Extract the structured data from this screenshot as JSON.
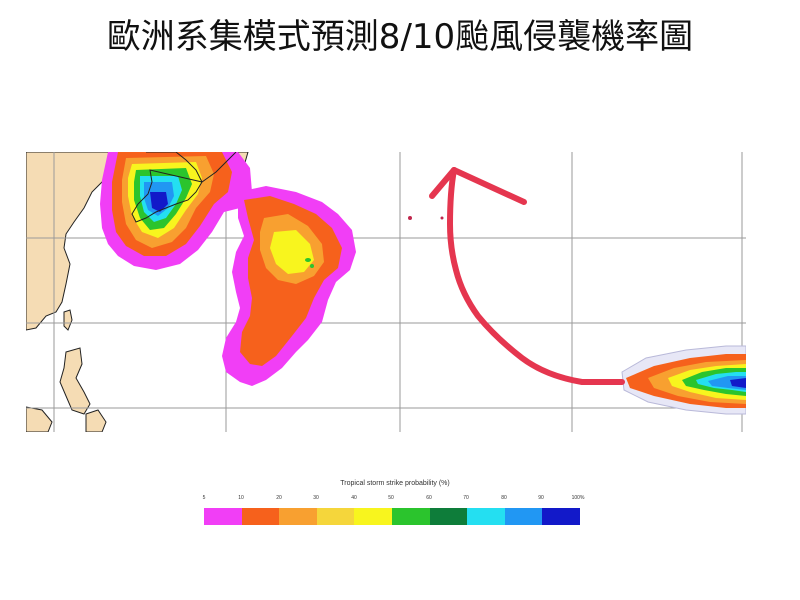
{
  "title": "歐洲系集模式預測8/10颱風侵襲機率圖",
  "legend": {
    "title": "Tropical storm strike probability (%)",
    "ticks": [
      "5",
      "10",
      "20",
      "30",
      "40",
      "50",
      "60",
      "70",
      "80",
      "90",
      "100%"
    ],
    "colors": [
      "#f13ef6",
      "#f6611c",
      "#f8a030",
      "#f5d63b",
      "#f8f51e",
      "#2bc42d",
      "#0e7d3a",
      "#24dff1",
      "#2197f3",
      "#1219c9",
      "#8a2ed1"
    ]
  },
  "colors": {
    "map_grid": "#9a9a9a",
    "land": "#f5dcb4",
    "coastline": "#222222",
    "hand_drawn_arrow": "#e5364f"
  }
}
